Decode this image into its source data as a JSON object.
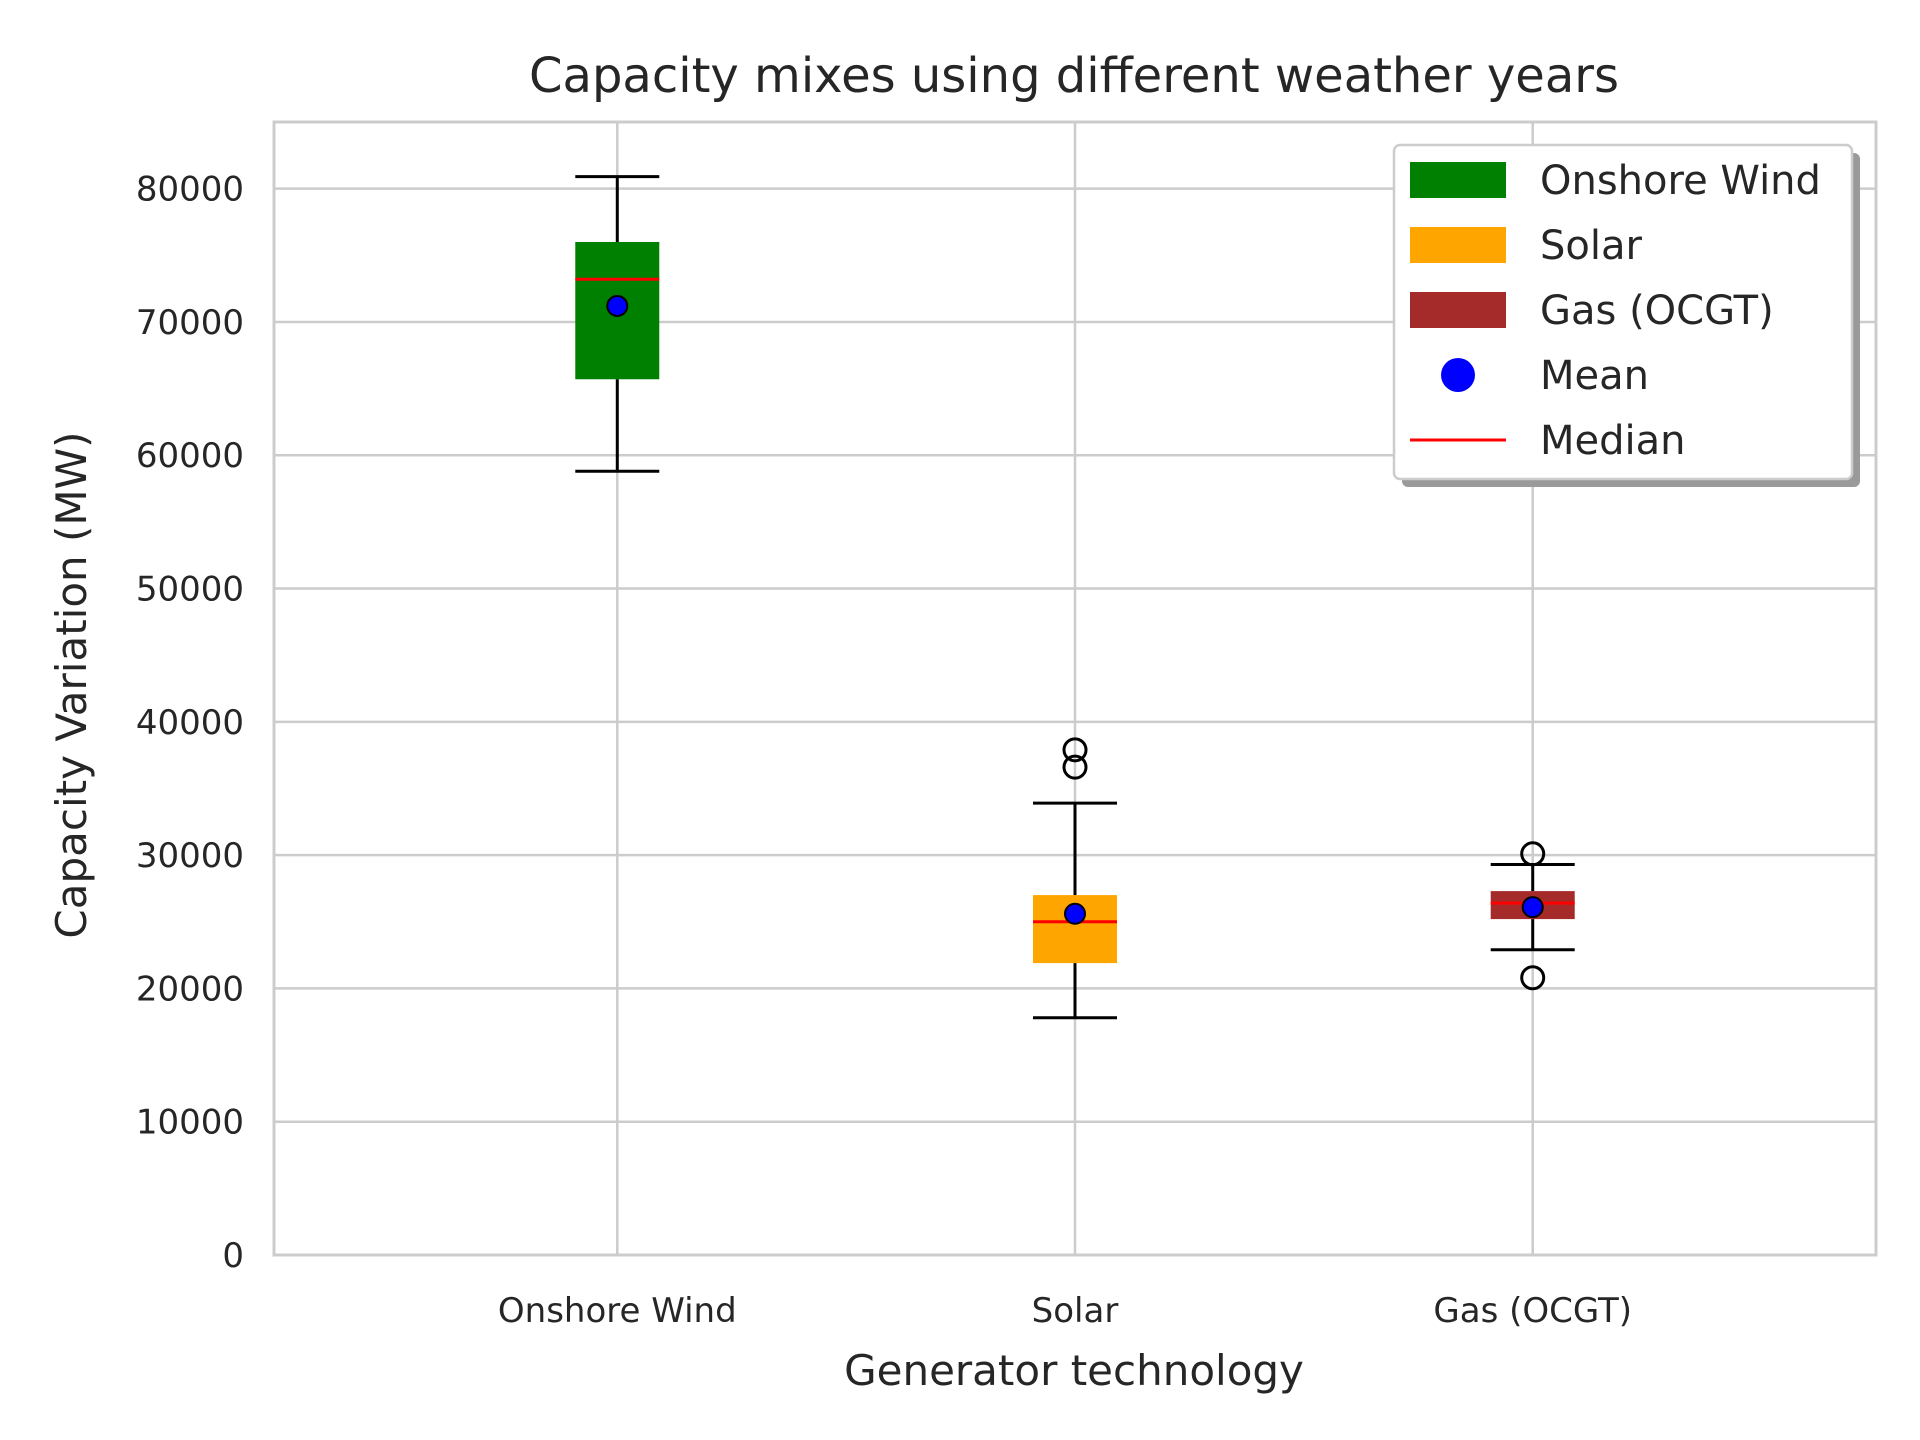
{
  "chart_data": {
    "type": "box",
    "title": "Capacity mixes using different weather years",
    "xlabel": "Generator technology",
    "ylabel": "Capacity Variation (MW)",
    "ylim": [
      0,
      85000
    ],
    "yticks": [
      0,
      10000,
      20000,
      30000,
      40000,
      50000,
      60000,
      70000,
      80000
    ],
    "grid": true,
    "legend_position": "top-right",
    "categories": [
      "Onshore Wind",
      "Solar",
      "Gas (OCGT)"
    ],
    "boxes": [
      {
        "name": "Onshore Wind",
        "color": "#008000",
        "whisker_low": 58800,
        "q1": 65700,
        "median": 73200,
        "q3": 76000,
        "whisker_high": 80900,
        "mean": 71200,
        "outliers": []
      },
      {
        "name": "Solar",
        "color": "#FFA500",
        "whisker_low": 17800,
        "q1": 21900,
        "median": 25000,
        "q3": 27000,
        "whisker_high": 33900,
        "mean": 25600,
        "outliers": [
          36600,
          37900
        ]
      },
      {
        "name": "Gas (OCGT)",
        "color": "#A52A2A",
        "whisker_low": 22900,
        "q1": 25200,
        "median": 26400,
        "q3": 27300,
        "whisker_high": 29300,
        "mean": 26100,
        "outliers": [
          30100,
          20800
        ]
      }
    ],
    "legend": [
      {
        "label": "Onshore Wind",
        "kind": "patch",
        "color": "#008000"
      },
      {
        "label": "Solar",
        "kind": "patch",
        "color": "#FFA500"
      },
      {
        "label": "Gas (OCGT)",
        "kind": "patch",
        "color": "#A52A2A"
      },
      {
        "label": "Mean",
        "kind": "marker",
        "color": "#0000FF"
      },
      {
        "label": "Median",
        "kind": "line",
        "color": "#FF0000"
      }
    ]
  }
}
